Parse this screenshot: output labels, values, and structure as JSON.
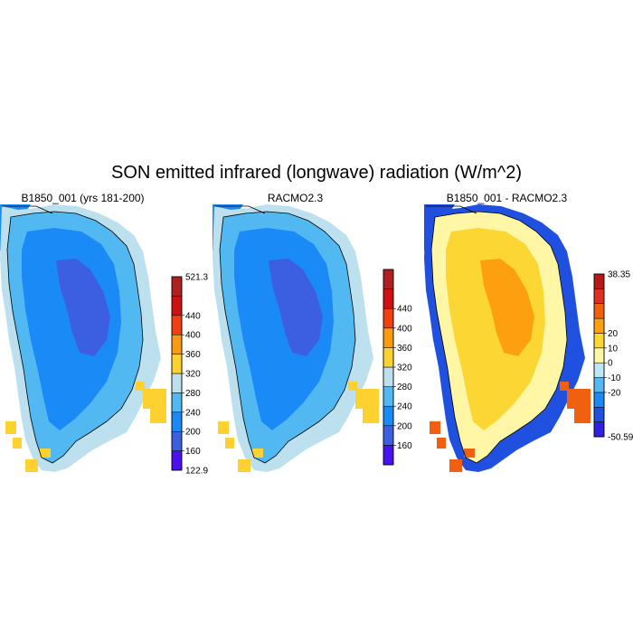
{
  "title": "SON emitted infrared (longwave) radiation (W/m^2)",
  "colors": {
    "abs": [
      "#4a10f0",
      "#3b5fe0",
      "#1a8af7",
      "#52b8f2",
      "#bde0ef",
      "#fdd230",
      "#fa9a10",
      "#f04010",
      "#d01010",
      "#b02020"
    ],
    "diff": [
      "#3020e0",
      "#2050e0",
      "#1a8af7",
      "#56b8f0",
      "#bfe6f5",
      "#fff6a6",
      "#fcd733",
      "#fca010",
      "#f06010",
      "#e03020",
      "#b81818"
    ]
  },
  "chart_data": [
    {
      "type": "heatmap",
      "title": "B1850_001 (yrs 181-200)",
      "colorbar": {
        "min_label": "122.9",
        "max_label": "521.3",
        "ticks": [
          "160",
          "200",
          "240",
          "280",
          "320",
          "360",
          "400",
          "440"
        ],
        "scale": "abs"
      },
      "field_classes": {
        "interior_core": 1,
        "interior": 2,
        "margin_inner": 3,
        "margin_outer": 4,
        "coast_warm": 5,
        "ocean_patch": 2
      }
    },
    {
      "type": "heatmap",
      "title": "RACMO2.3",
      "colorbar": {
        "min_label": "",
        "max_label": "",
        "ticks": [
          "160",
          "200",
          "240",
          "280",
          "320",
          "360",
          "400",
          "440"
        ],
        "scale": "abs"
      },
      "field_classes": {
        "interior_core": 1,
        "interior": 2,
        "margin_inner": 3,
        "margin_outer": 4,
        "coast_warm": 5,
        "ocean_patch": 2
      }
    },
    {
      "type": "heatmap",
      "title": "B1850_001 - RACMO2.3",
      "colorbar": {
        "min_label": "-50.59",
        "max_label": "38.35",
        "ticks": [
          "-20",
          "-10",
          "0",
          "10",
          "20"
        ],
        "scale": "diff"
      },
      "field_classes": {
        "interior_core": 7,
        "interior": 6,
        "margin_inner": 5,
        "margin_outer": 1,
        "coast_warm": 8,
        "ocean_patch": 1
      }
    }
  ]
}
